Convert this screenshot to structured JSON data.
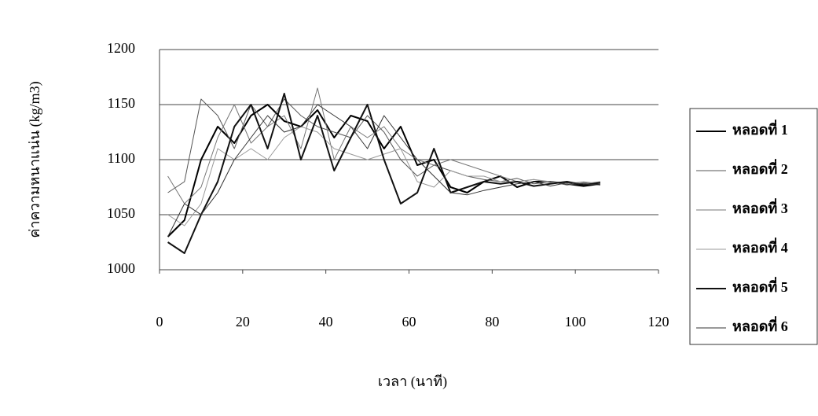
{
  "chart_data": {
    "type": "line",
    "x_label": "เวลา (นาที)",
    "y_label": "ค่าความหนาแน่น (kg/m3)",
    "x": [
      2,
      6,
      10,
      14,
      18,
      22,
      26,
      30,
      34,
      38,
      42,
      46,
      50,
      54,
      58,
      62,
      66,
      70,
      74,
      78,
      82,
      86,
      90,
      94,
      98,
      102,
      106
    ],
    "xlim": [
      0,
      120
    ],
    "xticks": [
      0,
      20,
      40,
      60,
      80,
      100,
      120
    ],
    "ylim": [
      1000,
      1200
    ],
    "yticks": [
      1000,
      1050,
      1100,
      1150,
      1200
    ],
    "grid": true,
    "series": [
      {
        "name": "หลอดที่ 1",
        "color": "#000000",
        "values": [
          1030,
          1045,
          1100,
          1130,
          1115,
          1140,
          1150,
          1135,
          1130,
          1145,
          1120,
          1140,
          1135,
          1110,
          1130,
          1095,
          1100,
          1075,
          1070,
          1080,
          1085,
          1075,
          1080,
          1080,
          1078,
          1076,
          1078
        ]
      },
      {
        "name": "หลอดที่ 2",
        "color": "#555555",
        "values": [
          1070,
          1080,
          1155,
          1140,
          1110,
          1150,
          1130,
          1155,
          1140,
          1130,
          1125,
          1120,
          1140,
          1125,
          1100,
          1085,
          1095,
          1090,
          1085,
          1082,
          1080,
          1083,
          1078,
          1080,
          1077,
          1079,
          1078
        ]
      },
      {
        "name": "หลอดที่ 3",
        "color": "#777777",
        "values": [
          1085,
          1060,
          1075,
          1120,
          1150,
          1115,
          1130,
          1140,
          1110,
          1165,
          1100,
          1130,
          1120,
          1130,
          1110,
          1100,
          1095,
          1100,
          1095,
          1090,
          1085,
          1080,
          1082,
          1079,
          1080,
          1078,
          1080
        ]
      },
      {
        "name": "หลอดที่ 4",
        "color": "#999999",
        "values": [
          1050,
          1040,
          1060,
          1110,
          1100,
          1110,
          1100,
          1120,
          1130,
          1125,
          1110,
          1105,
          1100,
          1105,
          1110,
          1080,
          1075,
          1090,
          1085,
          1085,
          1080,
          1080,
          1082,
          1080,
          1078,
          1080,
          1078
        ]
      },
      {
        "name": "หลอดที่ 5",
        "color": "#111111",
        "values": [
          1025,
          1015,
          1050,
          1080,
          1130,
          1150,
          1110,
          1160,
          1100,
          1140,
          1090,
          1120,
          1150,
          1100,
          1060,
          1070,
          1110,
          1070,
          1075,
          1080,
          1078,
          1080,
          1076,
          1078,
          1080,
          1077,
          1079
        ]
      },
      {
        "name": "หลอดที่ 6",
        "color": "#333333",
        "values": [
          1030,
          1060,
          1050,
          1070,
          1100,
          1120,
          1140,
          1125,
          1130,
          1150,
          1140,
          1130,
          1110,
          1140,
          1120,
          1100,
          1085,
          1070,
          1068,
          1072,
          1075,
          1078,
          1080,
          1076,
          1079,
          1078,
          1077
        ]
      }
    ]
  }
}
